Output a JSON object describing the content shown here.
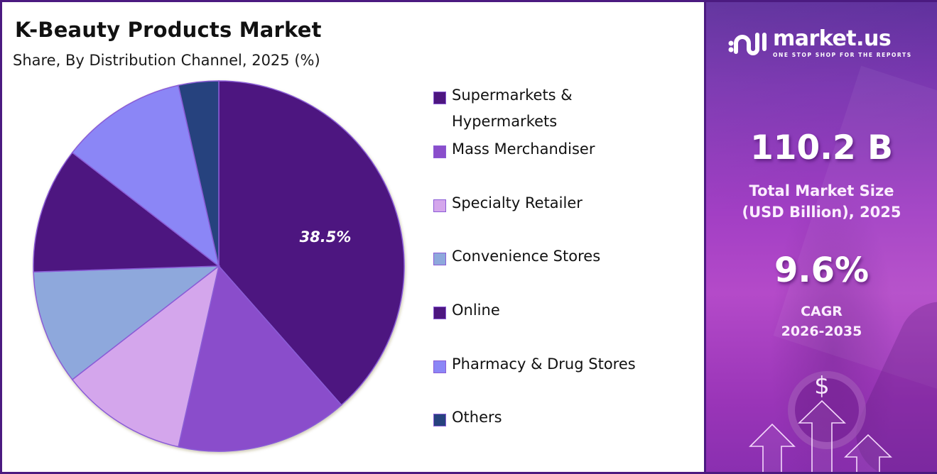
{
  "header": {
    "title": "K-Beauty Products Market",
    "subtitle": "Share, By Distribution Channel, 2025 (%)"
  },
  "chart_data": {
    "type": "pie",
    "title": "K-Beauty Products Market",
    "subtitle": "Share, By Distribution Channel, 2025 (%)",
    "categories": [
      "Supermarkets & Hypermarkets",
      "Mass Merchandiser",
      "Specialty Retailer",
      "Convenience Stores",
      "Online",
      "Pharmacy & Drug Stores",
      "Others"
    ],
    "values": [
      38.5,
      15.0,
      11.0,
      10.0,
      11.0,
      11.0,
      3.5
    ],
    "colors": [
      "#4d1680",
      "#8a4ecb",
      "#d4a6ec",
      "#8ea8dc",
      "#4d1680",
      "#8b86f6",
      "#26427e"
    ],
    "data_labels": [
      {
        "category": "Supermarkets & Hypermarkets",
        "text": "38.5%"
      }
    ],
    "start_angle_deg": 0,
    "direction": "clockwise",
    "legend_position": "right",
    "grid": false
  },
  "legend": {
    "items": [
      {
        "label": "Supermarkets & Hypermarkets",
        "line1": "Supermarkets &",
        "line2": "Hypermarkets",
        "color": "#4d1680"
      },
      {
        "label": "Mass Merchandiser",
        "color": "#8a4ecb"
      },
      {
        "label": "Specialty Retailer",
        "color": "#d4a6ec"
      },
      {
        "label": "Convenience Stores",
        "color": "#8ea8dc"
      },
      {
        "label": "Online",
        "color": "#4d1680"
      },
      {
        "label": "Pharmacy & Drug Stores",
        "color": "#8b86f6"
      },
      {
        "label": "Others",
        "color": "#26427e"
      }
    ]
  },
  "pie": {
    "highlight_label": "38.5%"
  },
  "brand": {
    "name": "market.us",
    "tagline": "ONE STOP SHOP FOR THE REPORTS"
  },
  "stats": {
    "market_size_value": "110.2 B",
    "market_size_label_line1": "Total Market Size",
    "market_size_label_line2": "(USD Billion), 2025",
    "cagr_value": "9.6%",
    "cagr_label_line1": "CAGR",
    "cagr_label_line2": "2026-2035"
  },
  "decor": {
    "currency_symbol": "$"
  },
  "colors": {
    "border": "#4b1a80",
    "panel_top": "#5a2a9a",
    "panel_mid": "#b44ac9",
    "text_dark": "#111111"
  }
}
